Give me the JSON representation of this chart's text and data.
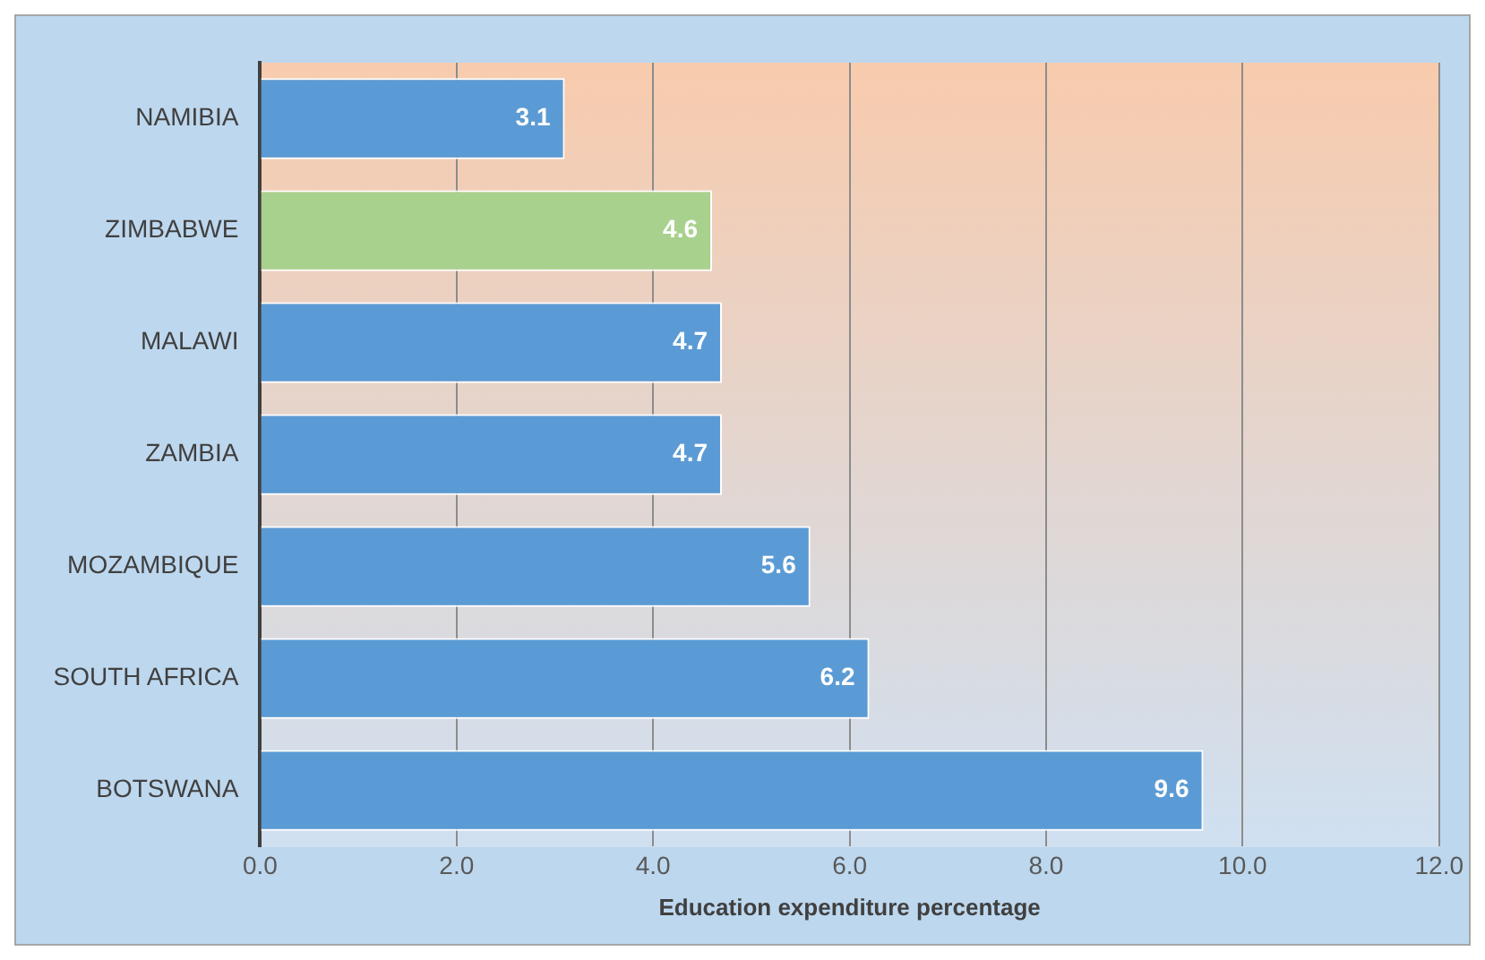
{
  "chart_data": {
    "type": "bar",
    "orientation": "horizontal",
    "xlabel": "Education expenditure percentage",
    "categories": [
      "NAMIBIA",
      "ZIMBABWE",
      "MALAWI",
      "ZAMBIA",
      "MOZAMBIQUE",
      "SOUTH AFRICA",
      "BOTSWANA"
    ],
    "values": [
      3.1,
      4.6,
      4.7,
      4.7,
      5.6,
      6.2,
      9.6
    ],
    "colors": [
      "#5b9bd5",
      "#a9d18e",
      "#5b9bd5",
      "#5b9bd5",
      "#5b9bd5",
      "#5b9bd5",
      "#5b9bd5"
    ],
    "xlim": [
      0,
      12
    ],
    "xticks": [
      {
        "value": 0,
        "label": "0.0"
      },
      {
        "value": 2,
        "label": "2.0"
      },
      {
        "value": 4,
        "label": "4.0"
      },
      {
        "value": 6,
        "label": "6.0"
      },
      {
        "value": 8,
        "label": "8.0"
      },
      {
        "value": 10,
        "label": "10.0"
      },
      {
        "value": 12,
        "label": "12.0"
      }
    ],
    "grid": "x",
    "data_labels": true,
    "legend": false
  }
}
